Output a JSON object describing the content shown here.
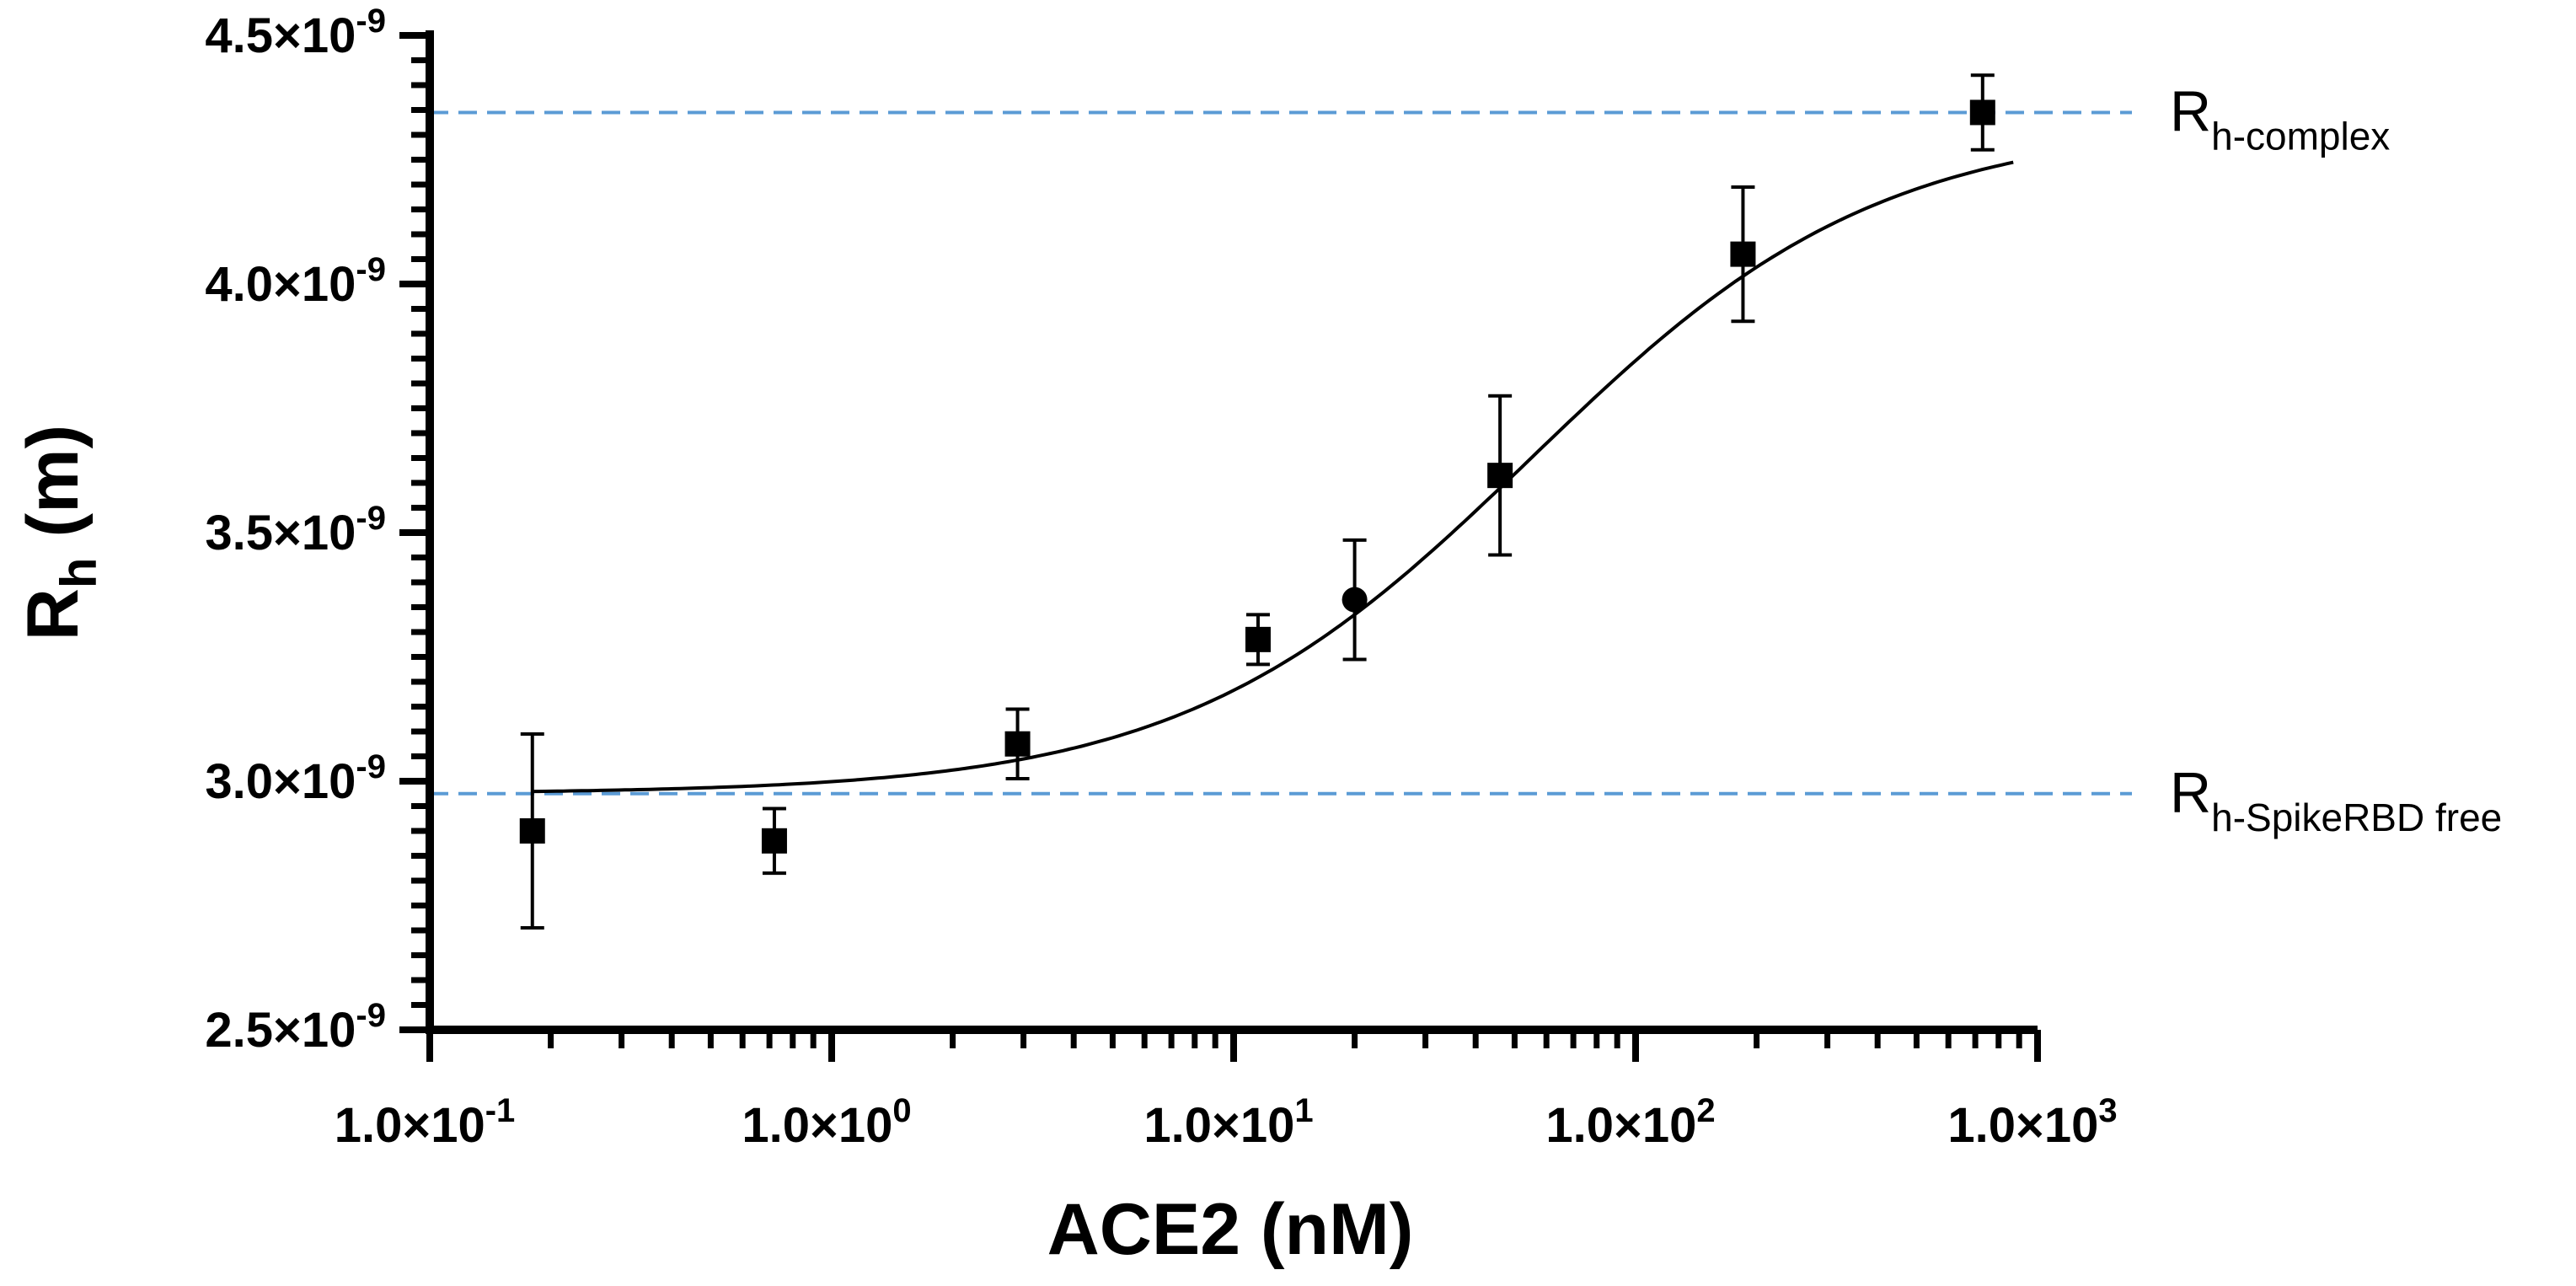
{
  "chart_data": {
    "type": "scatter",
    "title": "",
    "xlabel": "ACE2 (nM)",
    "ylabel": {
      "main": "R",
      "sub": "h",
      "rest": " (m)"
    },
    "xscale": "log",
    "xlim": [
      0.1,
      1000
    ],
    "ylim": [
      2.5e-09,
      4.5e-09
    ],
    "x_ticks": [
      {
        "value": 0.1,
        "mant": "1.0×10",
        "exp": "-1"
      },
      {
        "value": 1,
        "mant": "1.0×10",
        "exp": "0"
      },
      {
        "value": 10,
        "mant": "1.0×10",
        "exp": "1"
      },
      {
        "value": 100,
        "mant": "1.0×10",
        "exp": "2"
      },
      {
        "value": 1000,
        "mant": "1.0×10",
        "exp": "3"
      }
    ],
    "y_ticks": [
      {
        "value": 2.5e-09,
        "mant": "2.5×10",
        "exp": "-9"
      },
      {
        "value": 3e-09,
        "mant": "3.0×10",
        "exp": "-9"
      },
      {
        "value": 3.5e-09,
        "mant": "3.5×10",
        "exp": "-9"
      },
      {
        "value": 4e-09,
        "mant": "4.0×10",
        "exp": "-9"
      },
      {
        "value": 4.5e-09,
        "mant": "4.5×10",
        "exp": "-9"
      }
    ],
    "points": [
      {
        "x": 0.18,
        "y": 2.9e-09,
        "err": 1.95e-10,
        "marker": "square"
      },
      {
        "x": 0.72,
        "y": 2.88e-09,
        "err": 6.5e-11,
        "marker": "square"
      },
      {
        "x": 2.9,
        "y": 3.075e-09,
        "err": 7e-11,
        "marker": "square"
      },
      {
        "x": 11.5,
        "y": 3.285e-09,
        "err": 5e-11,
        "marker": "square"
      },
      {
        "x": 20,
        "y": 3.365e-09,
        "err": 1.2e-10,
        "marker": "circle"
      },
      {
        "x": 46,
        "y": 3.615e-09,
        "err": 1.6e-10,
        "marker": "square"
      },
      {
        "x": 185,
        "y": 4.06e-09,
        "err": 1.35e-10,
        "marker": "square"
      },
      {
        "x": 730,
        "y": 4.345e-09,
        "err": 7.5e-11,
        "marker": "square"
      }
    ],
    "fit": {
      "model": "sigmoidal dose-response",
      "bottom": 2.975e-09,
      "top": 4.325e-09,
      "ec50": 55,
      "hill": 1.0,
      "x_range": [
        0.18,
        870
      ],
      "color": "#000000"
    },
    "reference_lines": [
      {
        "y": 4.345e-09,
        "label_main": "R",
        "label_sub": "h-complex",
        "color": "#5b9bd5"
      },
      {
        "y": 2.975e-09,
        "label_main": "R",
        "label_sub": "h-SpikeRBD free",
        "color": "#5b9bd5"
      }
    ]
  }
}
